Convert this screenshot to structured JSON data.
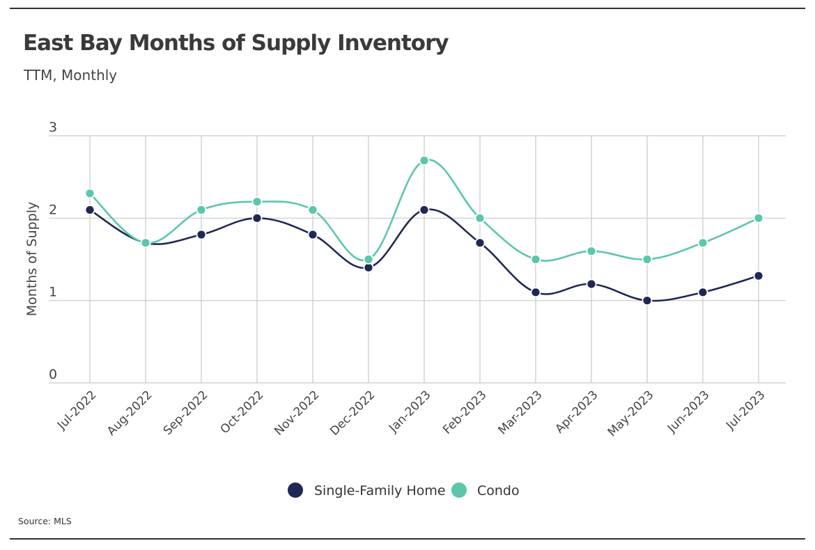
{
  "header": {
    "title": "East Bay Months of Supply Inventory",
    "subtitle": "TTM, Monthly"
  },
  "footer": {
    "source": "Source:  MLS"
  },
  "colors": {
    "single_family": "#1f2855",
    "condo": "#5cc6ad",
    "grid": "#c9c9c9",
    "text": "#444444"
  },
  "chart_data": {
    "type": "line",
    "title": "East Bay Months of Supply Inventory",
    "subtitle": "TTM, Monthly",
    "xlabel": "",
    "ylabel": "Months of Supply",
    "ylim": [
      0,
      3
    ],
    "yticks": [
      0,
      1,
      2,
      3
    ],
    "grid": true,
    "legend_position": "bottom-center",
    "categories": [
      "Jul-2022",
      "Aug-2022",
      "Sep-2022",
      "Oct-2022",
      "Nov-2022",
      "Dec-2022",
      "Jan-2023",
      "Feb-2023",
      "Mar-2023",
      "Apr-2023",
      "May-2023",
      "Jun-2023",
      "Jul-2023"
    ],
    "series": [
      {
        "name": "Single-Family Home",
        "color": "#1f2855",
        "values": [
          2.1,
          1.7,
          1.8,
          2.0,
          1.8,
          1.4,
          2.1,
          1.7,
          1.1,
          1.2,
          1.0,
          1.1,
          1.3
        ]
      },
      {
        "name": "Condo",
        "color": "#5cc6ad",
        "values": [
          2.3,
          1.7,
          2.1,
          2.2,
          2.1,
          1.5,
          2.7,
          2.0,
          1.5,
          1.6,
          1.5,
          1.7,
          2.0
        ]
      }
    ]
  }
}
